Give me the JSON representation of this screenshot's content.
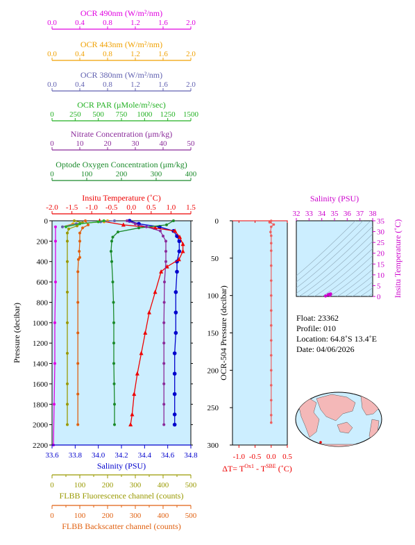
{
  "chart_data": [
    {
      "type": "line",
      "id": "main-profile",
      "y_axis": {
        "label": "Pressure (decibar)",
        "ticks": [
          0,
          200,
          400,
          600,
          800,
          1000,
          1200,
          1400,
          1600,
          1800,
          2000,
          2200
        ],
        "range": [
          0,
          2200
        ],
        "reversed": true
      },
      "top_axes": [
        {
          "id": "ocr490",
          "title": "OCR 490nm (W/m²/nm)",
          "color": "#e000e0",
          "range": [
            0,
            2
          ],
          "ticks": [
            0,
            0.4,
            0.8,
            1.2,
            1.6,
            2.0
          ],
          "tick_labels": [
            "0.0",
            "0.4",
            "0.8",
            "1.2",
            "1.6",
            "2.0"
          ]
        },
        {
          "id": "ocr443",
          "title": "OCR 443nm (W/m²/nm)",
          "color": "#f0a000",
          "range": [
            0,
            2
          ],
          "ticks": [
            0,
            0.4,
            0.8,
            1.2,
            1.6,
            2.0
          ],
          "tick_labels": [
            "0.0",
            "0.4",
            "0.8",
            "1.2",
            "1.6",
            "2.0"
          ]
        },
        {
          "id": "ocr380",
          "title": "OCR 380nm (W/m²/nm)",
          "color": "#6060b0",
          "range": [
            0,
            2
          ],
          "ticks": [
            0,
            0.4,
            0.8,
            1.2,
            1.6,
            2.0
          ],
          "tick_labels": [
            "0.0",
            "0.4",
            "0.8",
            "1.2",
            "1.6",
            "2.0"
          ]
        },
        {
          "id": "ocrpar",
          "title": "OCR PAR (μMole/m²/sec)",
          "color": "#20b020",
          "range": [
            0,
            1500
          ],
          "ticks": [
            0,
            250,
            500,
            750,
            1000,
            1250,
            1500
          ],
          "tick_labels": [
            "0",
            "250",
            "500",
            "750",
            "1000",
            "1250",
            "1500"
          ]
        },
        {
          "id": "nitrate",
          "title": "Nitrate Concentration (μm/kg)",
          "color": "#8a2a9a",
          "range": [
            0,
            50
          ],
          "ticks": [
            0,
            10,
            20,
            30,
            40,
            50
          ],
          "tick_labels": [
            "0",
            "10",
            "20",
            "30",
            "40",
            "50"
          ]
        },
        {
          "id": "oxygen",
          "title": "Optode Oxygen Concentration (μm/kg)",
          "color": "#1a8a2a",
          "range": [
            0,
            400
          ],
          "ticks": [
            0,
            100,
            200,
            300,
            400
          ],
          "tick_labels": [
            "0",
            "100",
            "200",
            "300",
            "400"
          ]
        },
        {
          "id": "temp",
          "title": "Insitu Temperature (˚C)",
          "color": "#ee0000",
          "range": [
            -2,
            1.5
          ],
          "ticks": [
            -2,
            -1.5,
            -1,
            -0.5,
            0,
            0.5,
            1,
            1.5
          ],
          "tick_labels": [
            "-2.0",
            "-1.5",
            "-1.0",
            "-0.5",
            "0.0",
            "0.5",
            "1.0",
            "1.5"
          ]
        }
      ],
      "bottom_axes": [
        {
          "id": "salinity",
          "title": "Salinity (PSU)",
          "color": "#0000cc",
          "range": [
            33.6,
            34.8
          ],
          "ticks": [
            33.6,
            33.8,
            34.0,
            34.2,
            34.4,
            34.6,
            34.8
          ],
          "tick_labels": [
            "33.6",
            "33.8",
            "34.0",
            "34.2",
            "34.4",
            "34.6",
            "34.8"
          ]
        },
        {
          "id": "fluor",
          "title": "FLBB Fluorescence channel (counts)",
          "color": "#999900",
          "range": [
            0,
            500
          ],
          "ticks": [
            0,
            50,
            100,
            150,
            200,
            250,
            300,
            350,
            400,
            450,
            500
          ],
          "tick_labels": [
            "0",
            "",
            "100",
            "",
            "200",
            "",
            "300",
            "",
            "400",
            "",
            "500"
          ]
        },
        {
          "id": "backscatter",
          "title": "FLBB Backscatter channel (counts)",
          "color": "#e06010",
          "range": [
            0,
            500
          ],
          "ticks": [
            0,
            50,
            100,
            150,
            200,
            250,
            300,
            350,
            400,
            450,
            500
          ],
          "tick_labels": [
            "0",
            "",
            "100",
            "",
            "200",
            "",
            "300",
            "",
            "400",
            "",
            "500"
          ]
        }
      ],
      "series": [
        {
          "axis": "salinity",
          "color": "#0000cc",
          "marker": "circle",
          "points": [
            [
              34.27,
              0
            ],
            [
              34.35,
              30
            ],
            [
              34.53,
              60
            ],
            [
              34.65,
              100
            ],
            [
              34.68,
              150
            ],
            [
              34.7,
              200
            ],
            [
              34.7,
              300
            ],
            [
              34.68,
              400
            ],
            [
              34.68,
              500
            ],
            [
              34.67,
              700
            ],
            [
              34.67,
              900
            ],
            [
              34.67,
              1100
            ],
            [
              34.66,
              1300
            ],
            [
              34.66,
              1500
            ],
            [
              34.66,
              1700
            ],
            [
              34.66,
              1900
            ],
            [
              34.66,
              2000
            ]
          ]
        },
        {
          "axis": "temp",
          "color": "#ee0000",
          "marker": "triangle",
          "points": [
            [
              -0.8,
              0
            ],
            [
              -0.2,
              40
            ],
            [
              0.6,
              70
            ],
            [
              1.1,
              100
            ],
            [
              1.22,
              160
            ],
            [
              1.3,
              230
            ],
            [
              1.3,
              300
            ],
            [
              1.2,
              380
            ],
            [
              0.9,
              450
            ],
            [
              0.75,
              500
            ],
            [
              0.6,
              700
            ],
            [
              0.45,
              900
            ],
            [
              0.35,
              1100
            ],
            [
              0.25,
              1300
            ],
            [
              0.15,
              1500
            ],
            [
              0.07,
              1700
            ],
            [
              0.02,
              1900
            ],
            [
              -0.02,
              2000
            ]
          ]
        },
        {
          "axis": "oxygen",
          "color": "#1a8a2a",
          "marker": "dot",
          "points": [
            [
              350,
              0
            ],
            [
              330,
              40
            ],
            [
              250,
              70
            ],
            [
              190,
              110
            ],
            [
              175,
              160
            ],
            [
              172,
              200
            ],
            [
              170,
              300
            ],
            [
              172,
              400
            ],
            [
              175,
              600
            ],
            [
              177,
              800
            ],
            [
              178,
              1000
            ],
            [
              178,
              1200
            ],
            [
              178,
              1400
            ],
            [
              179,
              1600
            ],
            [
              180,
              1800
            ],
            [
              180,
              2000
            ]
          ]
        },
        {
          "axis": "nitrate",
          "color": "#8a2a9a",
          "marker": "dot",
          "points": [
            [
              27,
              0
            ],
            [
              30,
              30
            ],
            [
              34,
              60
            ],
            [
              39,
              100
            ],
            [
              40,
              150
            ],
            [
              41,
              200
            ],
            [
              41,
              300
            ],
            [
              41,
              400
            ],
            [
              40.5,
              600
            ],
            [
              40.4,
              800
            ],
            [
              40.3,
              1000
            ],
            [
              40.3,
              1200
            ],
            [
              40.3,
              1400
            ],
            [
              40.3,
              1600
            ],
            [
              40.3,
              1800
            ],
            [
              40.3,
              2000
            ]
          ]
        },
        {
          "axis": "backscatter",
          "color": "#e06010",
          "marker": "dot",
          "points": [
            [
              120,
              0
            ],
            [
              130,
              40
            ],
            [
              110,
              70
            ],
            [
              100,
              120
            ],
            [
              100,
              200
            ],
            [
              98,
              300
            ],
            [
              100,
              360
            ],
            [
              95,
              380
            ],
            [
              93,
              500
            ],
            [
              93,
              800
            ],
            [
              93,
              1100
            ],
            [
              93,
              1400
            ],
            [
              93,
              1700
            ],
            [
              93,
              2000
            ]
          ]
        },
        {
          "axis": "fluor",
          "color": "#999900",
          "marker": "dot",
          "points": [
            [
              80,
              0
            ],
            [
              110,
              20
            ],
            [
              90,
              50
            ],
            [
              60,
              80
            ],
            [
              55,
              120
            ],
            [
              55,
              200
            ],
            [
              55,
              400
            ],
            [
              55,
              700
            ],
            [
              55,
              1000
            ],
            [
              55,
              1300
            ],
            [
              55,
              1600
            ],
            [
              55,
              1800
            ],
            [
              55,
              2000
            ]
          ]
        },
        {
          "axis": "ocr490",
          "color": "#e000e0",
          "marker": "dot",
          "points": [
            [
              0.05,
              60
            ],
            [
              0.05,
              200
            ],
            [
              0.05,
              600
            ],
            [
              0.04,
              1000
            ],
            [
              0.04,
              1400
            ],
            [
              0.03,
              1800
            ],
            [
              0.02,
              2200
            ]
          ]
        },
        {
          "axis": "ocr443",
          "color": "#f0a000",
          "marker": "dot",
          "points": [
            [
              0.8,
              0
            ],
            [
              0.75,
              10
            ],
            [
              0.3,
              30
            ],
            [
              0.15,
              60
            ]
          ]
        },
        {
          "axis": "ocr380",
          "color": "#6060b0",
          "marker": "dot",
          "points": [
            [
              0.9,
              0
            ],
            [
              0.7,
              10
            ],
            [
              0.35,
              30
            ],
            [
              0.15,
              60
            ]
          ]
        },
        {
          "axis": "ocrpar",
          "color": "#20b020",
          "marker": "dot",
          "points": [
            [
              560,
              0
            ],
            [
              500,
              10
            ],
            [
              300,
              30
            ],
            [
              150,
              60
            ]
          ]
        }
      ]
    },
    {
      "type": "line",
      "id": "delta-t",
      "y_axis": {
        "label": "OCR-504 Pressure (decibar)",
        "ticks": [
          0,
          50,
          100,
          150,
          200,
          250,
          300
        ],
        "range": [
          0,
          300
        ],
        "reversed": true
      },
      "x_axis": {
        "label_prefix": "ΔT= T",
        "label_sup1": "Ox1",
        "label_mid": " - T",
        "label_sup2": "SBE",
        "label_suffix": " (˚C)",
        "ticks": [
          -1.0,
          -0.5,
          0.0,
          0.5
        ],
        "tick_labels": [
          "-1.0",
          "-0.5",
          "0.0",
          "0.5"
        ],
        "range": [
          -1.2,
          0.5
        ],
        "color": "#ee0000"
      },
      "series": [
        {
          "color": "#ee6060",
          "marker": "dot",
          "points": [
            [
              0.0,
              0
            ],
            [
              -0.05,
              2
            ],
            [
              0.08,
              5
            ],
            [
              0.0,
              8
            ],
            [
              -0.02,
              15
            ],
            [
              0.0,
              20
            ],
            [
              0.0,
              30
            ],
            [
              0.0,
              40
            ],
            [
              0.0,
              60
            ],
            [
              0.0,
              80
            ],
            [
              0.0,
              100
            ],
            [
              0.0,
              120
            ],
            [
              0.0,
              140
            ],
            [
              0.0,
              160
            ],
            [
              0.0,
              180
            ],
            [
              0.0,
              200
            ],
            [
              0.0,
              220
            ],
            [
              0.0,
              240
            ],
            [
              0.0,
              260
            ],
            [
              0.0,
              270
            ]
          ]
        }
      ]
    },
    {
      "type": "scatter",
      "id": "ts-diagram",
      "x_axis": {
        "title": "Salinity (PSU)",
        "ticks": [
          32,
          33,
          34,
          35,
          36,
          37,
          38
        ],
        "tick_labels": [
          "32",
          "33",
          "34",
          "35",
          "36",
          "37",
          "38"
        ],
        "range": [
          32,
          38
        ],
        "color": "#cc00cc"
      },
      "y_axis": {
        "title": "Insitu Temperature (˚C)",
        "ticks": [
          0,
          5,
          10,
          15,
          20,
          25,
          30,
          35
        ],
        "tick_labels": [
          "0",
          "5",
          "10",
          "15",
          "20",
          "25",
          "30",
          "35"
        ],
        "range": [
          0,
          35
        ],
        "color": "#cc00cc"
      },
      "points": [
        [
          34.3,
          0.2
        ],
        [
          34.5,
          0.8
        ],
        [
          34.6,
          1.0
        ],
        [
          34.7,
          1.2
        ],
        [
          34.65,
          0.6
        ]
      ]
    }
  ],
  "info": {
    "float": "Float:  23362",
    "profile": "Profile:  010",
    "location": "Location:  64.8˚S  13.4˚E",
    "date": "Date:  04/06/2026"
  },
  "colors": {
    "plot_bg": "#cceeff",
    "accent_red": "#ee0000",
    "ts_marker": "#cc00cc",
    "land": "#f4b8b8",
    "sea": "#cceeff"
  }
}
